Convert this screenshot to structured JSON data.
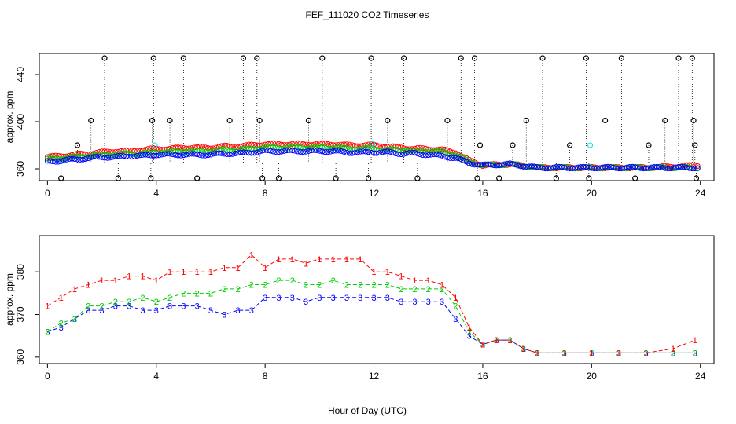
{
  "title": "FEF_111020  CO2 Timeseries",
  "xlabel": "Hour of Day (UTC)",
  "colors": {
    "series1": "#ff0000",
    "series2": "#00cc00",
    "series3": "#0000ff",
    "calibration": "#00e5e5",
    "axis": "#000000"
  },
  "chart_data": [
    {
      "type": "scatter",
      "title": "FEF_111020  CO2 Timeseries",
      "ylabel": "approx. ppm",
      "xlim": [
        -0.3,
        24.5
      ],
      "ylim": [
        350,
        458
      ],
      "xticks": [
        0,
        4,
        8,
        12,
        16,
        20,
        24
      ],
      "yticks": [
        360,
        400,
        440
      ],
      "series": [
        {
          "name": "1",
          "color": "#ff0000",
          "values": [
            [
              0,
              370
            ],
            [
              0.5,
              371
            ],
            [
              1,
              372
            ],
            [
              1.5,
              373
            ],
            [
              2,
              374
            ],
            [
              2.5,
              375
            ],
            [
              3,
              375
            ],
            [
              3.5,
              376
            ],
            [
              4,
              377
            ],
            [
              4.5,
              377
            ],
            [
              5,
              378
            ],
            [
              5.5,
              378
            ],
            [
              6,
              378
            ],
            [
              6.5,
              379
            ],
            [
              7,
              379
            ],
            [
              7.5,
              380
            ],
            [
              8,
              381
            ],
            [
              8.5,
              381
            ],
            [
              9,
              381
            ],
            [
              9.5,
              381
            ],
            [
              10,
              381
            ],
            [
              10.5,
              381
            ],
            [
              11,
              380
            ],
            [
              11.5,
              380
            ],
            [
              12,
              380
            ],
            [
              12.5,
              379
            ],
            [
              13,
              378
            ],
            [
              13.5,
              377
            ],
            [
              14,
              377
            ],
            [
              14.5,
              376
            ],
            [
              15,
              374
            ],
            [
              15.5,
              367
            ],
            [
              16,
              363
            ],
            [
              17,
              364
            ],
            [
              18,
              361
            ],
            [
              19,
              361
            ],
            [
              20,
              361
            ],
            [
              21,
              361
            ],
            [
              22,
              361
            ],
            [
              23,
              362
            ],
            [
              24,
              363
            ]
          ]
        },
        {
          "name": "2",
          "color": "#00cc00",
          "values": [
            [
              0,
              368
            ],
            [
              0.5,
              369
            ],
            [
              1,
              370
            ],
            [
              1.5,
              371
            ],
            [
              2,
              372
            ],
            [
              2.5,
              372
            ],
            [
              3,
              373
            ],
            [
              3.5,
              373
            ],
            [
              4,
              374
            ],
            [
              4.5,
              374
            ],
            [
              5,
              375
            ],
            [
              5.5,
              375
            ],
            [
              6,
              375
            ],
            [
              6.5,
              376
            ],
            [
              7,
              376
            ],
            [
              7.5,
              377
            ],
            [
              8,
              378
            ],
            [
              8.5,
              378
            ],
            [
              9,
              378
            ],
            [
              9.5,
              378
            ],
            [
              10,
              378
            ],
            [
              10.5,
              378
            ],
            [
              11,
              377
            ],
            [
              11.5,
              377
            ],
            [
              12,
              377
            ],
            [
              12.5,
              376
            ],
            [
              13,
              376
            ],
            [
              13.5,
              375
            ],
            [
              14,
              375
            ],
            [
              14.5,
              374
            ],
            [
              15,
              372
            ],
            [
              15.5,
              366
            ],
            [
              16,
              363
            ],
            [
              17,
              364
            ],
            [
              18,
              361
            ],
            [
              19,
              361
            ],
            [
              20,
              361
            ],
            [
              21,
              361
            ],
            [
              22,
              361
            ],
            [
              23,
              361
            ],
            [
              24,
              361
            ]
          ]
        },
        {
          "name": "3",
          "color": "#0000ff",
          "values": [
            [
              0,
              366
            ],
            [
              0.5,
              367
            ],
            [
              1,
              368
            ],
            [
              1.5,
              369
            ],
            [
              2,
              370
            ],
            [
              2.5,
              370
            ],
            [
              3,
              371
            ],
            [
              3.5,
              371
            ],
            [
              4,
              372
            ],
            [
              4.5,
              372
            ],
            [
              5,
              372
            ],
            [
              5.5,
              372
            ],
            [
              6,
              372
            ],
            [
              6.5,
              373
            ],
            [
              7,
              373
            ],
            [
              7.5,
              374
            ],
            [
              8,
              375
            ],
            [
              8.5,
              375
            ],
            [
              9,
              375
            ],
            [
              9.5,
              375
            ],
            [
              10,
              375
            ],
            [
              10.5,
              375
            ],
            [
              11,
              374
            ],
            [
              11.5,
              374
            ],
            [
              12,
              374
            ],
            [
              12.5,
              374
            ],
            [
              13,
              373
            ],
            [
              13.5,
              373
            ],
            [
              14,
              372
            ],
            [
              14.5,
              371
            ],
            [
              15,
              369
            ],
            [
              15.5,
              365
            ],
            [
              16,
              363
            ],
            [
              17,
              364
            ],
            [
              18,
              361
            ],
            [
              19,
              361
            ],
            [
              20,
              361
            ],
            [
              21,
              361
            ],
            [
              22,
              361
            ],
            [
              23,
              361
            ],
            [
              24,
              361
            ]
          ]
        },
        {
          "name": "calibration",
          "color": "#000000",
          "x": [
            0.5,
            1.1,
            1.6,
            2.1,
            2.6,
            3.8,
            3.85,
            3.9,
            4.5,
            5.0,
            5.5,
            6.7,
            7.2,
            7.7,
            7.8,
            7.9,
            8.5,
            9.6,
            10.1,
            10.6,
            11.8,
            11.9,
            12.5,
            13.1,
            13.6,
            14.7,
            15.2,
            15.7,
            15.8,
            15.9,
            16.6,
            17.1,
            17.6,
            18.2,
            18.7,
            19.2,
            19.8,
            19.9,
            20.5,
            21.1,
            21.6,
            22.1,
            22.7,
            23.2,
            23.7,
            23.75,
            23.8,
            23.85
          ],
          "y": [
            352,
            380,
            401,
            454,
            352,
            352,
            401,
            454,
            401,
            454,
            352,
            401,
            454,
            454,
            401,
            352,
            352,
            401,
            454,
            352,
            352,
            454,
            401,
            454,
            352,
            401,
            454,
            454,
            352,
            380,
            352,
            380,
            401,
            454,
            352,
            380,
            454,
            352,
            401,
            454,
            352,
            380,
            401,
            454,
            454,
            401,
            380,
            352
          ]
        }
      ]
    },
    {
      "type": "line",
      "ylabel": "approx. ppm",
      "xlabel": "Hour of Day (UTC)",
      "xlim": [
        -0.3,
        24.5
      ],
      "ylim": [
        358.5,
        388.5
      ],
      "xticks": [
        0,
        4,
        8,
        12,
        16,
        20,
        24
      ],
      "yticks": [
        360,
        370,
        380
      ],
      "series": [
        {
          "name": "1",
          "color": "#ff0000",
          "x": [
            0,
            0.5,
            1,
            1.5,
            2,
            2.5,
            3,
            3.5,
            4,
            4.5,
            5,
            5.5,
            6,
            6.5,
            7,
            7.5,
            8,
            8.5,
            9,
            9.5,
            10,
            10.5,
            11,
            11.5,
            12,
            12.5,
            13,
            13.5,
            14,
            14.5,
            15,
            15.5,
            16,
            16.5,
            17,
            17.5,
            18,
            19,
            20,
            21,
            22,
            23,
            23.8
          ],
          "values": [
            372,
            374,
            376,
            377,
            378,
            378,
            379,
            379,
            378,
            380,
            380,
            380,
            380,
            381,
            381,
            384,
            381,
            383,
            383,
            382,
            383,
            383,
            383,
            383,
            380,
            380,
            379,
            378,
            378,
            377,
            374,
            367,
            363,
            364,
            364,
            362,
            361,
            361,
            361,
            361,
            361,
            362,
            364
          ]
        },
        {
          "name": "2",
          "color": "#00cc00",
          "x": [
            0,
            0.5,
            1,
            1.5,
            2,
            2.5,
            3,
            3.5,
            4,
            4.5,
            5,
            5.5,
            6,
            6.5,
            7,
            7.5,
            8,
            8.5,
            9,
            9.5,
            10,
            10.5,
            11,
            11.5,
            12,
            12.5,
            13,
            13.5,
            14,
            14.5,
            15,
            15.5,
            16,
            16.5,
            17,
            17.5,
            18,
            19,
            20,
            21,
            22,
            23,
            23.8
          ],
          "values": [
            366,
            368,
            369,
            372,
            372,
            373,
            373,
            374,
            373,
            374,
            375,
            375,
            375,
            376,
            376,
            377,
            377,
            378,
            378,
            377,
            377,
            378,
            377,
            377,
            377,
            377,
            376,
            376,
            376,
            376,
            372,
            366,
            363,
            364,
            364,
            362,
            361,
            361,
            361,
            361,
            361,
            361,
            361
          ]
        },
        {
          "name": "3",
          "color": "#0000ff",
          "x": [
            0,
            0.5,
            1,
            1.5,
            2,
            2.5,
            3,
            3.5,
            4,
            4.5,
            5,
            5.5,
            6,
            6.5,
            7,
            7.5,
            8,
            8.5,
            9,
            9.5,
            10,
            10.5,
            11,
            11.5,
            12,
            12.5,
            13,
            13.5,
            14,
            14.5,
            15,
            15.5,
            16,
            16.5,
            17,
            17.5,
            18,
            19,
            20,
            21,
            22,
            23,
            23.8
          ],
          "values": [
            366,
            367,
            369,
            371,
            371,
            372,
            372,
            371,
            371,
            372,
            372,
            372,
            371,
            370,
            371,
            371,
            374,
            374,
            374,
            373,
            374,
            374,
            374,
            374,
            374,
            374,
            373,
            373,
            373,
            373,
            369,
            365,
            363,
            364,
            364,
            362,
            361,
            361,
            361,
            361,
            361,
            361,
            361
          ]
        }
      ]
    }
  ]
}
